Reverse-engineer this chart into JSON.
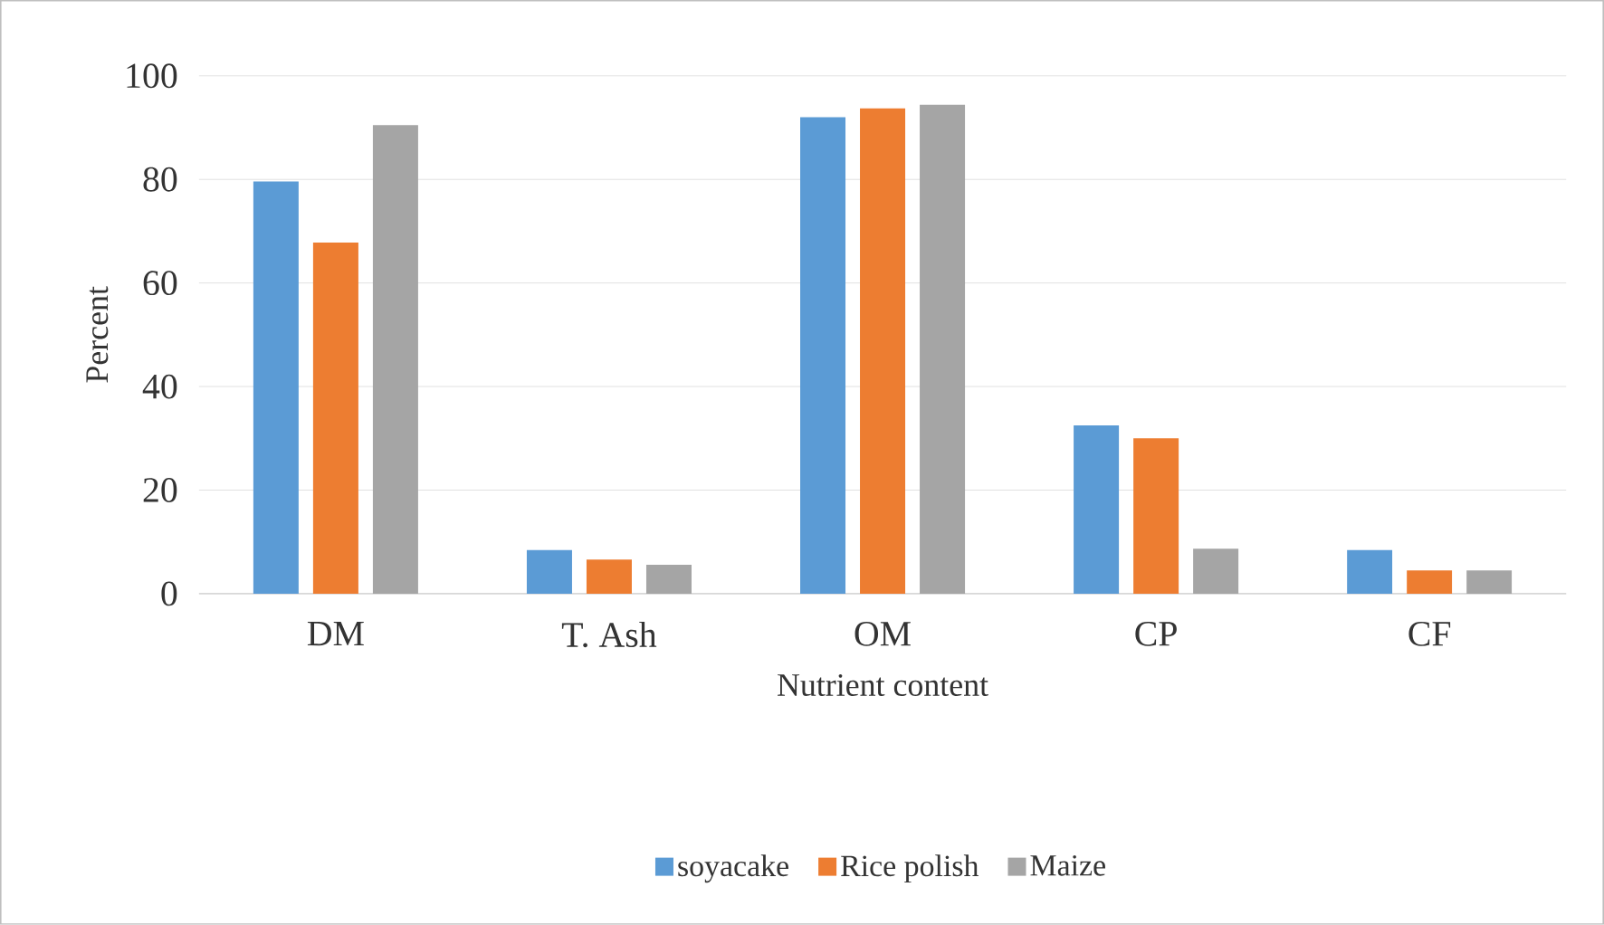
{
  "chart_data": {
    "type": "bar",
    "xlabel": "Nutrient content",
    "ylabel": "Percent",
    "categories": [
      "DM",
      "T. Ash",
      "OM",
      "CP",
      "CF"
    ],
    "series": [
      {
        "name": "soyacake",
        "color": "#5b9bd5",
        "values": [
          79.6,
          8.4,
          92,
          32.5,
          8.4
        ]
      },
      {
        "name": "Rice polish",
        "color": "#ed7d31",
        "values": [
          67.8,
          6.6,
          93.7,
          30,
          4.5
        ]
      },
      {
        "name": "Maize",
        "color": "#a5a5a5",
        "values": [
          90.5,
          5.6,
          94.4,
          8.7,
          4.5
        ]
      }
    ],
    "ylim": [
      0,
      100
    ],
    "yticks": [
      0,
      20,
      40,
      60,
      80,
      100
    ],
    "grid": "y",
    "legend": "bottom"
  }
}
